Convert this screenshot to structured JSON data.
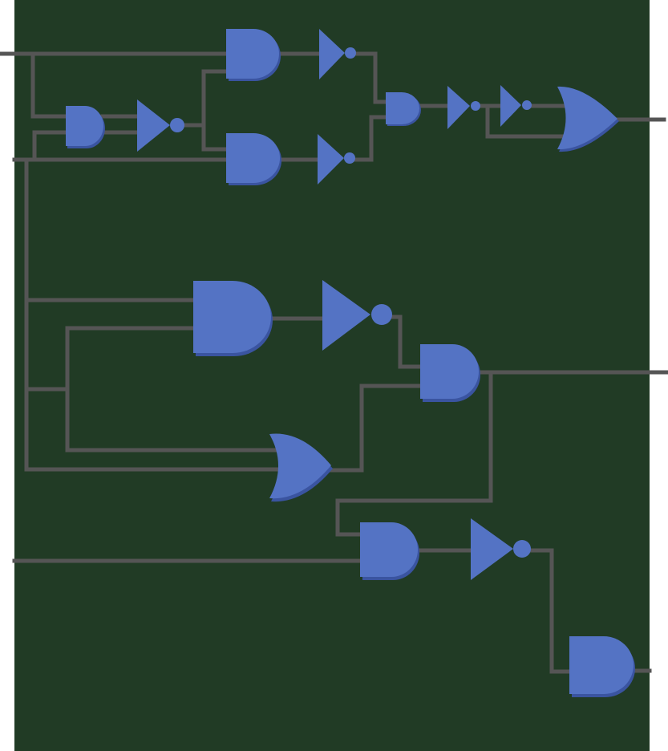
{
  "diagram": {
    "type": "logic-circuit",
    "colors": {
      "background": "#213b25",
      "page": "#ffffff",
      "wire": "#555555",
      "gate_fill": "#5473c4",
      "gate_shadow": "#3a54a0"
    },
    "gates": [
      {
        "name": "and-gate-1",
        "kind": "and"
      },
      {
        "name": "not-gate-1",
        "kind": "not"
      },
      {
        "name": "and-gate-2",
        "kind": "and"
      },
      {
        "name": "and-gate-3",
        "kind": "and"
      },
      {
        "name": "not-gate-2",
        "kind": "not"
      },
      {
        "name": "not-gate-3",
        "kind": "not"
      },
      {
        "name": "and-gate-4",
        "kind": "and"
      },
      {
        "name": "not-gate-4",
        "kind": "not"
      },
      {
        "name": "not-gate-5",
        "kind": "not"
      },
      {
        "name": "or-gate-1",
        "kind": "or"
      },
      {
        "name": "and-gate-5",
        "kind": "and"
      },
      {
        "name": "not-gate-6",
        "kind": "not"
      },
      {
        "name": "or-gate-2",
        "kind": "or"
      },
      {
        "name": "and-gate-6",
        "kind": "and"
      },
      {
        "name": "and-gate-7",
        "kind": "and"
      },
      {
        "name": "not-gate-7",
        "kind": "not"
      },
      {
        "name": "and-gate-8",
        "kind": "and"
      }
    ]
  }
}
